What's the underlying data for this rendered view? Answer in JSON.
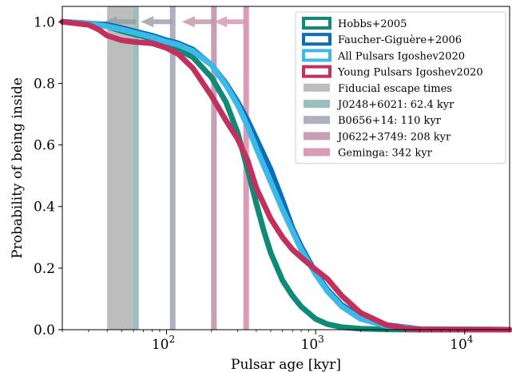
{
  "chart_data": {
    "type": "line",
    "xlabel": "Pulsar age [kyr]",
    "ylabel": "Probability of being inside",
    "xscale": "log",
    "xlim": [
      20,
      20000
    ],
    "ylim": [
      0,
      1.05
    ],
    "x_ticks": [
      {
        "value": 100,
        "base": "10",
        "exp": "2"
      },
      {
        "value": 1000,
        "base": "10",
        "exp": "3"
      },
      {
        "value": 10000,
        "base": "10",
        "exp": "4"
      }
    ],
    "y_ticks": [
      {
        "value": 0.0,
        "label": "0.0"
      },
      {
        "value": 0.2,
        "label": "0.2"
      },
      {
        "value": 0.4,
        "label": "0.4"
      },
      {
        "value": 0.6,
        "label": "0.6"
      },
      {
        "value": 0.8,
        "label": "0.8"
      },
      {
        "value": 1.0,
        "label": "1.0"
      }
    ],
    "grid": false,
    "legend_position": "top-right",
    "fiducial_band": {
      "name": "Fiducial escape times",
      "x_range": [
        40,
        62.4
      ],
      "color": "#bdbdbd"
    },
    "pulsars": [
      {
        "name": "J0248+6021: 62.4 kyr",
        "age": 62.4,
        "color": "#9bbfbf"
      },
      {
        "name": "B0656+14: 110 kyr",
        "age": 110,
        "color": "#aeb0bd"
      },
      {
        "name": "J0622+3749: 208 kyr",
        "age": 208,
        "color": "#c89eb4"
      },
      {
        "name": "Geminga: 342 kyr",
        "age": 342,
        "color": "#d99bb5"
      }
    ],
    "arrows": [
      {
        "age": 62.4,
        "color": "#9aa0a0"
      },
      {
        "age": 110,
        "color": "#a0a2b0"
      },
      {
        "age": 208,
        "color": "#c29bb0"
      },
      {
        "age": 342,
        "color": "#d99bb5"
      }
    ],
    "series": [
      {
        "name": "Hobbs+2005",
        "color": "#0f8a78",
        "x": [
          20,
          30,
          40,
          50,
          60,
          80,
          100,
          120,
          150,
          200,
          250,
          300,
          350,
          400,
          450,
          500,
          600,
          700,
          800,
          1000,
          1200,
          1500,
          2000,
          3000,
          5000,
          20000
        ],
        "y": [
          1.0,
          0.995,
          0.985,
          0.97,
          0.96,
          0.945,
          0.93,
          0.91,
          0.885,
          0.82,
          0.74,
          0.64,
          0.52,
          0.41,
          0.32,
          0.25,
          0.16,
          0.11,
          0.075,
          0.035,
          0.018,
          0.008,
          0.003,
          0.001,
          0,
          0
        ]
      },
      {
        "name": "Faucher-Giguère+2006",
        "color": "#0a6eb8",
        "x": [
          20,
          30,
          40,
          50,
          60,
          80,
          100,
          120,
          150,
          200,
          250,
          300,
          350,
          400,
          500,
          600,
          700,
          800,
          1000,
          1200,
          1500,
          2000,
          3000,
          5000,
          20000
        ],
        "y": [
          1.0,
          0.995,
          0.99,
          0.98,
          0.97,
          0.955,
          0.94,
          0.93,
          0.91,
          0.86,
          0.8,
          0.74,
          0.68,
          0.62,
          0.52,
          0.42,
          0.33,
          0.27,
          0.185,
          0.13,
          0.08,
          0.04,
          0.015,
          0.002,
          0
        ]
      },
      {
        "name": "All Pulsars Igoshev2020",
        "color": "#3db9e8",
        "x": [
          20,
          30,
          40,
          50,
          60,
          80,
          100,
          120,
          150,
          200,
          250,
          300,
          350,
          400,
          500,
          600,
          700,
          800,
          1000,
          1200,
          1500,
          2000,
          3000,
          5000,
          20000
        ],
        "y": [
          1.0,
          0.995,
          0.985,
          0.975,
          0.965,
          0.95,
          0.935,
          0.925,
          0.905,
          0.86,
          0.795,
          0.73,
          0.66,
          0.59,
          0.48,
          0.39,
          0.32,
          0.26,
          0.18,
          0.125,
          0.075,
          0.035,
          0.012,
          0.002,
          0
        ]
      },
      {
        "name": "Young Pulsars Igoshev2020",
        "color": "#c2305e",
        "x": [
          20,
          30,
          35,
          40,
          50,
          60,
          80,
          100,
          120,
          150,
          200,
          250,
          300,
          350,
          400,
          500,
          600,
          700,
          800,
          1000,
          1200,
          1500,
          2000,
          3000,
          4000,
          5000,
          20000
        ],
        "y": [
          1.0,
          0.99,
          0.975,
          0.955,
          0.94,
          0.935,
          0.93,
          0.915,
          0.895,
          0.85,
          0.76,
          0.68,
          0.62,
          0.55,
          0.46,
          0.36,
          0.3,
          0.26,
          0.235,
          0.195,
          0.165,
          0.11,
          0.055,
          0.015,
          0.004,
          0.001,
          0
        ]
      }
    ],
    "legend": [
      {
        "label": "Hobbs+2005",
        "kind": "line",
        "color": "#0f8a78"
      },
      {
        "label": "Faucher-Giguère+2006",
        "kind": "line",
        "color": "#0a6eb8"
      },
      {
        "label": "All Pulsars Igoshev2020",
        "kind": "line",
        "color": "#3db9e8"
      },
      {
        "label": "Young Pulsars Igoshev2020",
        "kind": "line",
        "color": "#c2305e"
      },
      {
        "label": "Fiducial escape times",
        "kind": "patch",
        "color": "#bdbdbd"
      },
      {
        "label": "J0248+6021: 62.4 kyr",
        "kind": "patch",
        "color": "#9bbfbf"
      },
      {
        "label": "B0656+14: 110 kyr",
        "kind": "patch",
        "color": "#aeb0bd"
      },
      {
        "label": "J0622+3749: 208 kyr",
        "kind": "patch",
        "color": "#c89eb4"
      },
      {
        "label": "Geminga: 342 kyr",
        "kind": "patch",
        "color": "#d99bb5"
      }
    ]
  }
}
